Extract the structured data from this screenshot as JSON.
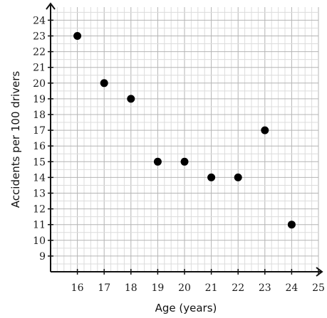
{
  "chart_data": {
    "type": "scatter",
    "title": "",
    "xlabel": "Age (years)",
    "ylabel": "Accidents per 100 drivers",
    "xlim": [
      15,
      25
    ],
    "ylim": [
      8,
      24.5
    ],
    "x_ticks": [
      "16",
      "17",
      "18",
      "19",
      "20",
      "21",
      "22",
      "23",
      "24",
      "25"
    ],
    "y_ticks": [
      "9",
      "10",
      "11",
      "12",
      "13",
      "14",
      "15",
      "16",
      "17",
      "18",
      "19",
      "20",
      "21",
      "22",
      "23",
      "24"
    ],
    "grid": true,
    "points": [
      {
        "x": 16,
        "y": 23
      },
      {
        "x": 17,
        "y": 20
      },
      {
        "x": 18,
        "y": 19
      },
      {
        "x": 19,
        "y": 15
      },
      {
        "x": 20,
        "y": 15
      },
      {
        "x": 21,
        "y": 14
      },
      {
        "x": 22,
        "y": 14
      },
      {
        "x": 23,
        "y": 17
      },
      {
        "x": 24,
        "y": 11
      }
    ],
    "colors": {
      "points": "#000000",
      "grid_major": "#b4b4b4",
      "grid_minor": "#dcdcdc",
      "axis": "#111111"
    }
  }
}
